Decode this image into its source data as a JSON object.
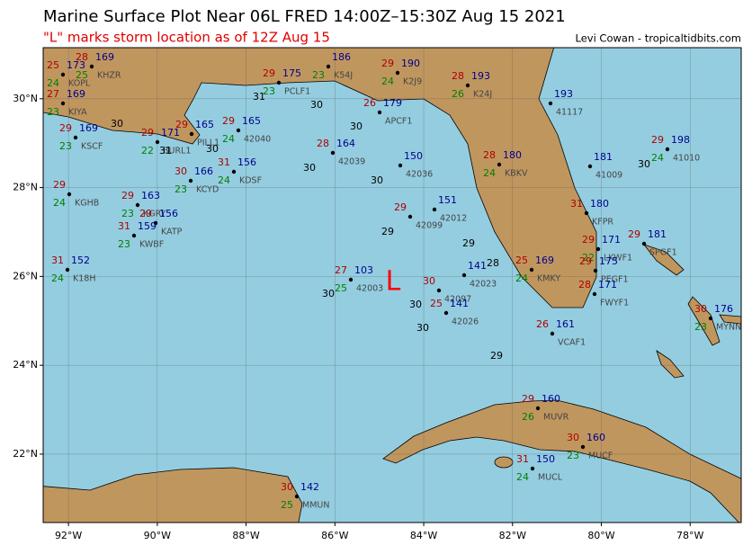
{
  "header": {
    "title": "Marine Surface Plot Near 06L FRED 14:00Z–15:30Z Aug 15 2021",
    "subtitle": "\"L\" marks storm location as of 12Z Aug 15",
    "credit": "Levi Cowan - tropicaltidbits.com"
  },
  "map": {
    "xlim": [
      -92.57,
      -76.85
    ],
    "ylim": [
      20.46,
      31.15
    ],
    "xticks": [
      {
        "value": -92,
        "label": "92°W"
      },
      {
        "value": -90,
        "label": "90°W"
      },
      {
        "value": -88,
        "label": "88°W"
      },
      {
        "value": -86,
        "label": "86°W"
      },
      {
        "value": -84,
        "label": "84°W"
      },
      {
        "value": -82,
        "label": "82°W"
      },
      {
        "value": -80,
        "label": "80°W"
      },
      {
        "value": -78,
        "label": "78°W"
      }
    ],
    "yticks": [
      {
        "value": 22,
        "label": "22°N"
      },
      {
        "value": 24,
        "label": "24°N"
      },
      {
        "value": 26,
        "label": "26°N"
      },
      {
        "value": 28,
        "label": "28°N"
      },
      {
        "value": 30,
        "label": "30°N"
      }
    ],
    "grid": true
  },
  "storm": {
    "label": "L"
  },
  "stations": [
    {
      "id": "KOPL",
      "temp": 25,
      "dewpoint": 24,
      "pressure": 173
    },
    {
      "id": "KHZR",
      "temp": 28,
      "dewpoint": 25,
      "pressure": 169
    },
    {
      "id": "KIYA",
      "temp": 27,
      "dewpoint": 23,
      "pressure": 169
    },
    {
      "id": "KSCF",
      "temp": 29,
      "dewpoint": 23,
      "pressure": 169
    },
    {
      "id": "KGHB",
      "temp": 29,
      "dewpoint": 24
    },
    {
      "id": "K18H",
      "temp": 31,
      "dewpoint": 24,
      "pressure": 152
    },
    {
      "id": "KGRY",
      "temp": 29,
      "dewpoint": 23,
      "pressure": 163
    },
    {
      "id": "KATP",
      "temp": 29,
      "pressure": 156
    },
    {
      "id": "KWBF",
      "temp": 31,
      "dewpoint": 23,
      "pressure": 159
    },
    {
      "id": "BURL1",
      "temp": 29,
      "dewpoint": 22,
      "pressure": 171
    },
    {
      "id": "PILL1",
      "temp": 29,
      "pressure": 165
    },
    {
      "id": "KCYD",
      "temp": 30,
      "dewpoint": 23,
      "pressure": 166
    },
    {
      "id": "KDSF",
      "temp": 31,
      "dewpoint": 24,
      "pressure": 156
    },
    {
      "id": "42040",
      "temp": 29,
      "dewpoint": 24,
      "pressure": 165
    },
    {
      "id": "PCLF1",
      "temp": 29,
      "dewpoint": 23,
      "pressure": 175
    },
    {
      "id": "K54J",
      "dewpoint": 23,
      "pressure": 186
    },
    {
      "id": "K2J9",
      "temp": 29,
      "dewpoint": 24,
      "pressure": 190
    },
    {
      "id": "K24J",
      "temp": 28,
      "dewpoint": 26,
      "pressure": 193
    },
    {
      "id": "APCF1",
      "temp": 26,
      "pressure": 179
    },
    {
      "id": "42039",
      "temp": 28,
      "pressure": 164
    },
    {
      "id": "42036",
      "pressure": 150
    },
    {
      "id": "42099",
      "temp": 29
    },
    {
      "id": "42012",
      "pressure": 151
    },
    {
      "id": "42003",
      "temp": 27,
      "dewpoint": 25,
      "pressure": 103
    },
    {
      "id": "42097",
      "temp": 30
    },
    {
      "id": "42023",
      "pressure": 141
    },
    {
      "id": "42026",
      "temp": 25,
      "pressure": 141
    },
    {
      "id": "41117",
      "pressure": 193
    },
    {
      "id": "41009",
      "pressure": 181
    },
    {
      "id": "41010",
      "temp": 29,
      "dewpoint": 24,
      "pressure": 198
    },
    {
      "id": "KBKV",
      "temp": 28,
      "dewpoint": 24,
      "pressure": 180
    },
    {
      "id": "KFPR",
      "temp": 31,
      "pressure": 180
    },
    {
      "id": "KMKY",
      "temp": 25,
      "dewpoint": 24,
      "pressure": 169
    },
    {
      "id": "LKWF1",
      "temp": 29,
      "dewpoint": 22,
      "pressure": 171
    },
    {
      "id": "SPGF1",
      "temp": 29,
      "pressure": 181
    },
    {
      "id": "PEGF1",
      "temp": 29,
      "pressure": 175
    },
    {
      "id": "FWYF1",
      "temp": 28,
      "pressure": 171
    },
    {
      "id": "VCAF1",
      "temp": 26,
      "pressure": 161
    },
    {
      "id": "MYNN",
      "temp": 30,
      "dewpoint": 23,
      "pressure": 176
    },
    {
      "id": "MUVR",
      "temp": 29,
      "dewpoint": 26,
      "pressure": 160
    },
    {
      "id": "MUCF",
      "temp": 30,
      "dewpoint": 23,
      "pressure": 160
    },
    {
      "id": "MUCL",
      "temp": 31,
      "dewpoint": 24,
      "pressure": 150
    },
    {
      "id": "MMUN",
      "temp": 30,
      "dewpoint": 25,
      "pressure": 142
    }
  ],
  "buoy_values": [
    30,
    30,
    30,
    30,
    29,
    29,
    28,
    30,
    30,
    30,
    29,
    30,
    31,
    30,
    31,
    30
  ]
}
